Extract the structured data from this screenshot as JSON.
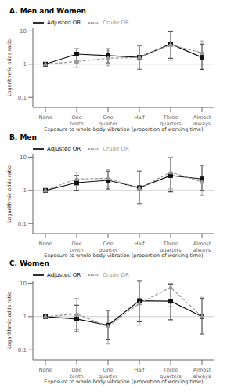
{
  "chart_data": [
    {
      "type": "line",
      "title": "A. Men and Women",
      "xlabel": "Exposure to whole-body vibration (proportion of working time)",
      "ylabel": "Logarithmic odds ratio",
      "categories": [
        "None",
        "One tenth",
        "One quarter",
        "Half",
        "Three quarters",
        "Almost always"
      ],
      "series": [
        {
          "name": "Adjusted OR",
          "color": "#111111",
          "marker": "square",
          "line_style": "solid",
          "values": [
            1.0,
            2.0,
            1.8,
            1.6,
            4.0,
            1.6
          ],
          "lower": [
            1.0,
            1.3,
            1.1,
            0.7,
            1.5,
            0.7
          ],
          "upper": [
            1.0,
            2.9,
            2.9,
            3.6,
            9.5,
            4.0
          ]
        },
        {
          "name": "Crude OR",
          "color": "#999999",
          "marker": "triangle",
          "line_style": "dashed",
          "values": [
            1.0,
            1.2,
            1.5,
            1.6,
            3.8,
            2.2
          ],
          "lower": [
            1.0,
            0.8,
            0.9,
            0.7,
            1.3,
            1.0
          ],
          "upper": [
            1.0,
            1.8,
            2.5,
            3.5,
            10.0,
            5.0
          ]
        }
      ],
      "ref_line": 1.0,
      "log": "y",
      "ylim": [
        0.05,
        12
      ],
      "yticks": [
        0.1,
        1,
        10
      ],
      "grid": false,
      "legend": "upper left"
    },
    {
      "type": "line",
      "title": "B. Men",
      "xlabel": "Exposure to whole-body vibration (proportion of working time)",
      "ylabel": "Logarithmic odds ratio",
      "categories": [
        "None",
        "One tenth",
        "One quarter",
        "Half",
        "Three quarters",
        "Almost always"
      ],
      "series": [
        {
          "name": "Adjusted OR",
          "color": "#111111",
          "marker": "square",
          "line_style": "solid",
          "values": [
            1.0,
            1.7,
            2.0,
            1.2,
            2.8,
            2.2
          ],
          "lower": [
            1.0,
            1.0,
            1.1,
            0.4,
            0.9,
            1.0
          ],
          "upper": [
            1.0,
            2.8,
            3.8,
            3.8,
            9.5,
            5.5
          ]
        },
        {
          "name": "Crude OR",
          "color": "#999999",
          "marker": "triangle",
          "line_style": "dashed",
          "values": [
            1.0,
            2.2,
            2.3,
            1.15,
            3.5,
            1.8
          ],
          "lower": [
            1.0,
            1.4,
            1.3,
            0.4,
            1.1,
            0.7
          ],
          "upper": [
            1.0,
            3.5,
            4.2,
            3.7,
            10.0,
            5.5
          ]
        }
      ],
      "ref_line": 1.0,
      "log": "y",
      "ylim": [
        0.05,
        12
      ],
      "yticks": [
        0.1,
        1,
        10
      ],
      "grid": false,
      "legend": "upper left"
    },
    {
      "type": "line",
      "title": "C. Women",
      "xlabel": "Exposure to whole-body vibration (proportion of working time)",
      "ylabel": "Logarithmic odds ratio",
      "categories": [
        "None",
        "One tenth",
        "One quarter",
        "Half",
        "Three quarters",
        "Almost always"
      ],
      "series": [
        {
          "name": "Adjusted OR",
          "color": "#111111",
          "marker": "square",
          "line_style": "solid",
          "values": [
            1.0,
            0.85,
            0.55,
            3.0,
            2.9,
            1.0
          ],
          "lower": [
            1.0,
            0.35,
            0.2,
            0.7,
            0.8,
            0.3
          ],
          "upper": [
            1.0,
            2.2,
            1.5,
            12.0,
            9.5,
            3.5
          ]
        },
        {
          "name": "Crude OR",
          "color": "#999999",
          "marker": "triangle",
          "line_style": "dashed",
          "values": [
            1.0,
            1.2,
            0.5,
            2.5,
            7.5,
            1.0
          ],
          "lower": [
            1.0,
            0.4,
            0.15,
            0.55,
            2.0,
            0.3
          ],
          "upper": [
            1.0,
            3.5,
            1.5,
            11.0,
            10.0,
            3.8
          ]
        }
      ],
      "ref_line": 1.0,
      "log": "y",
      "ylim": [
        0.05,
        12
      ],
      "yticks": [
        0.1,
        1,
        10
      ],
      "grid": false,
      "legend": "upper left"
    }
  ]
}
